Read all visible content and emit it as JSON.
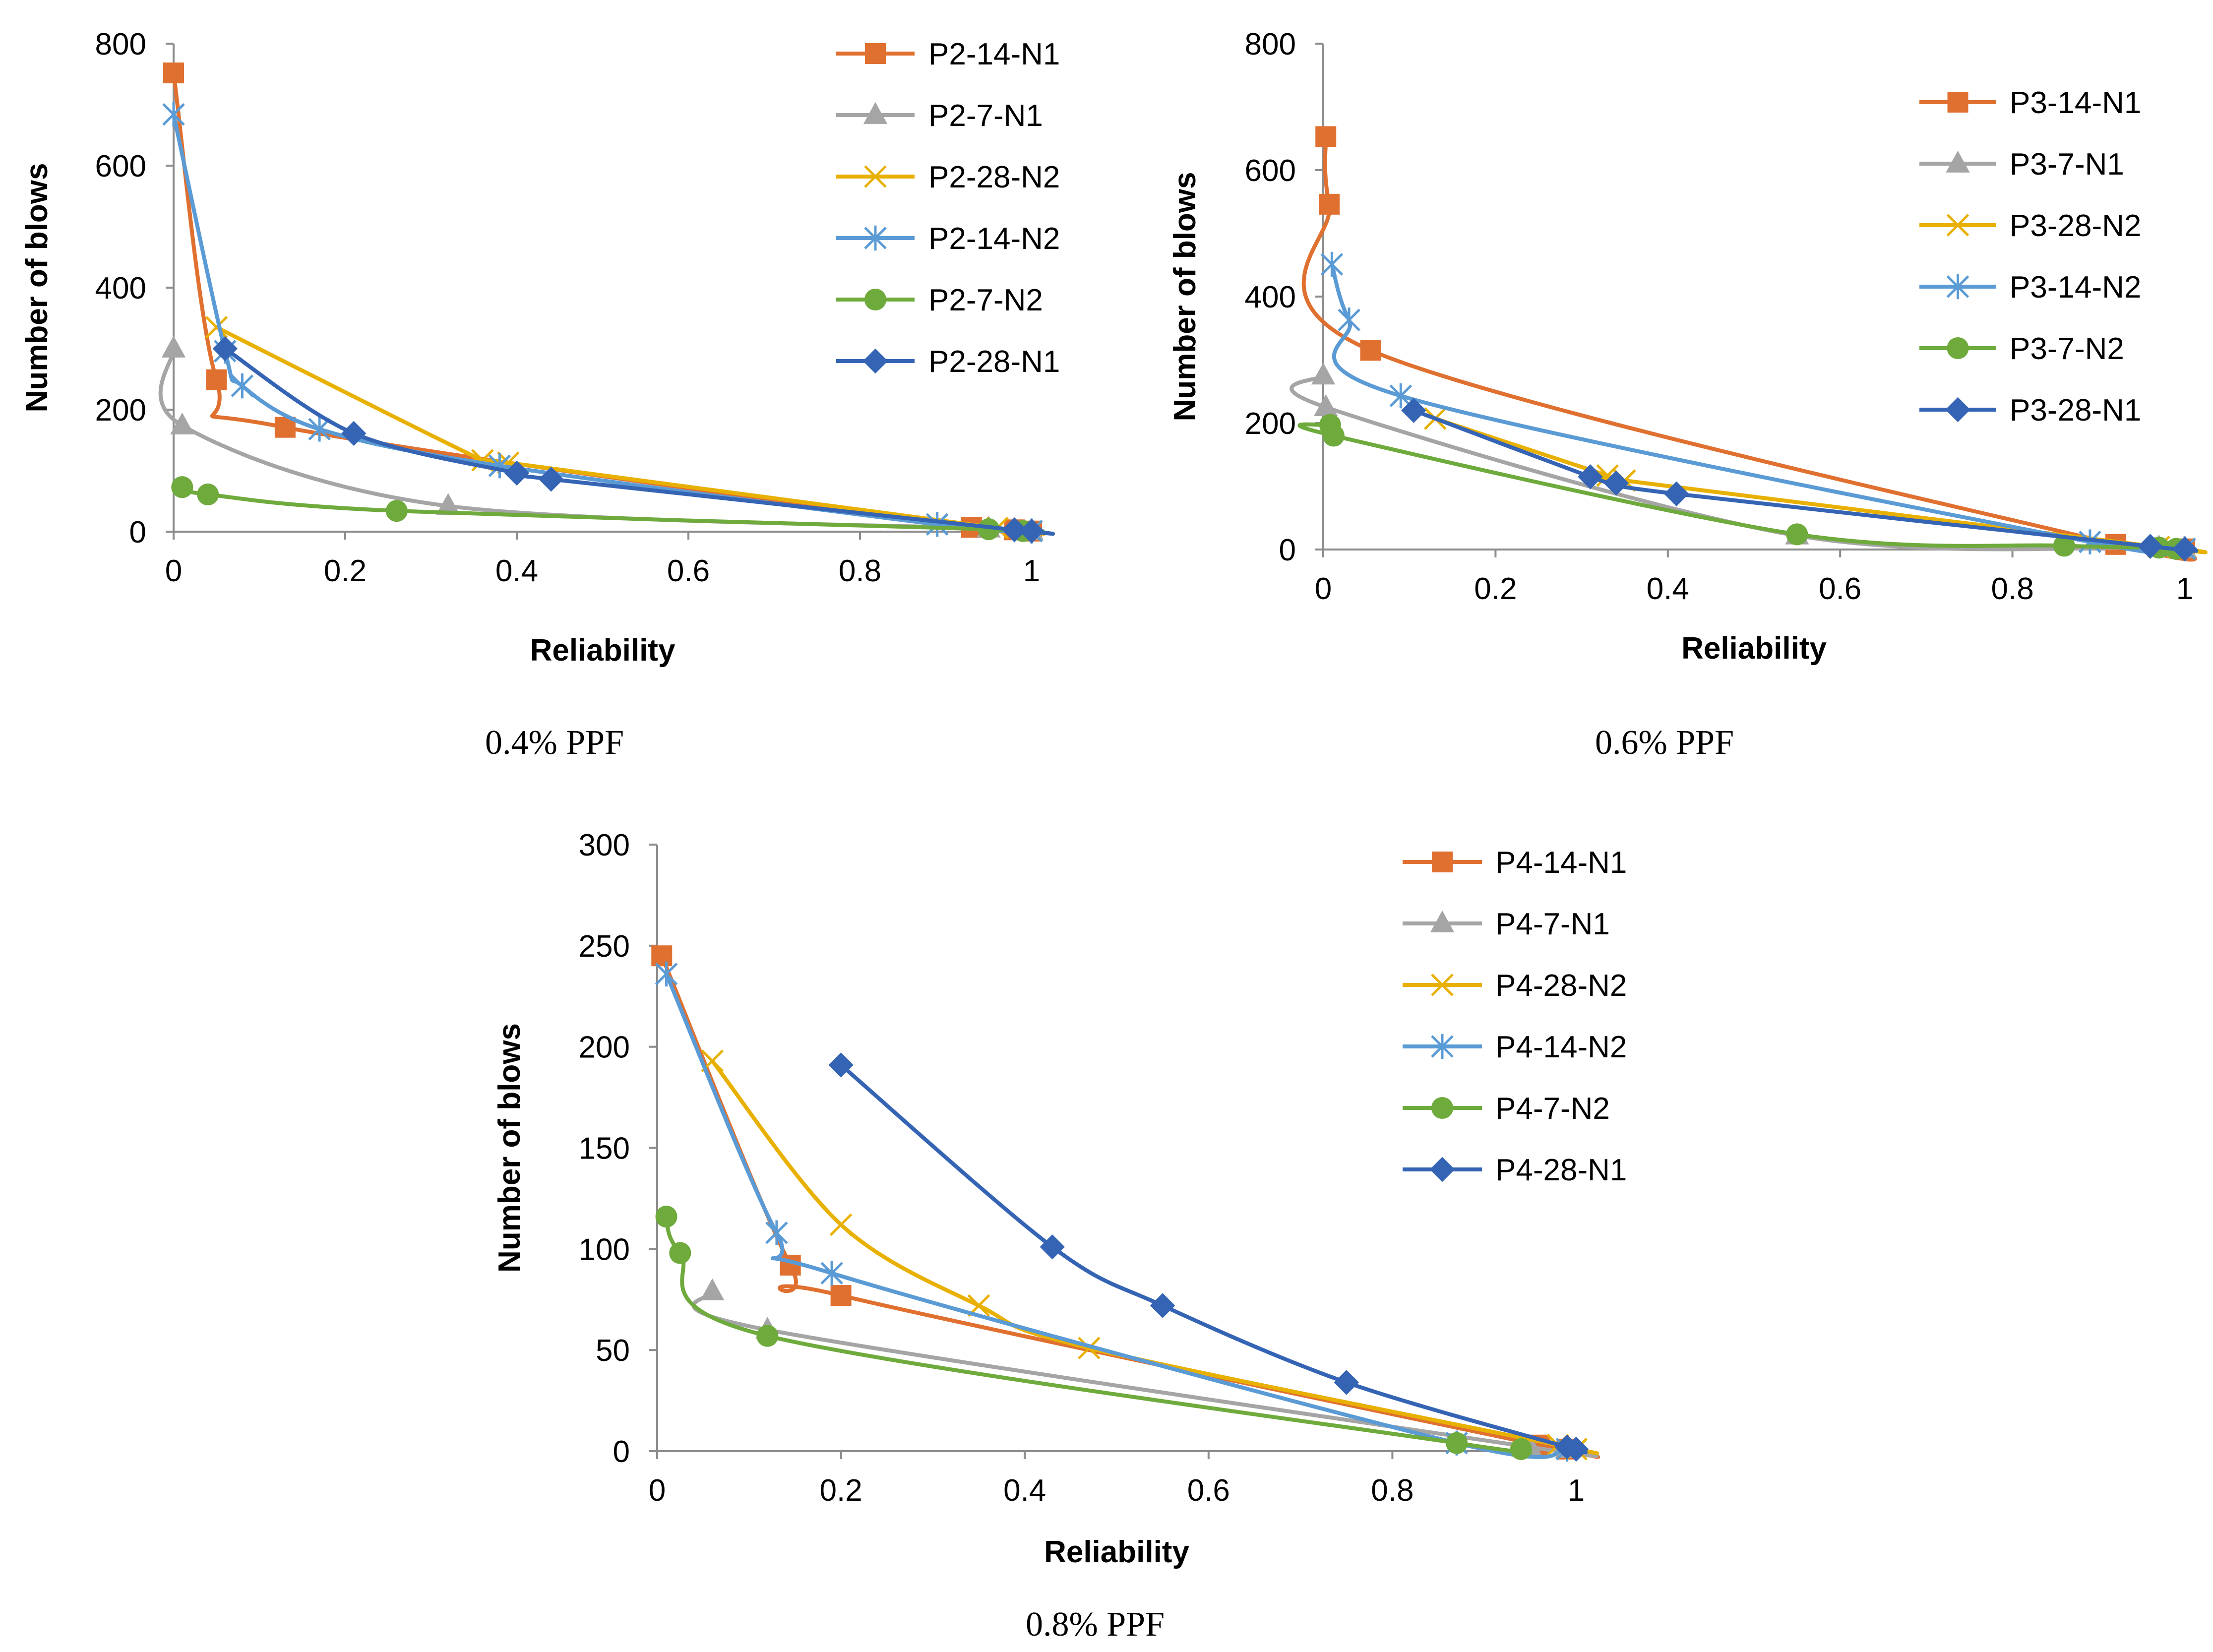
{
  "chart_data": [
    {
      "type": "line",
      "caption": "0.4% PPF",
      "xlabel": "Reliability",
      "ylabel": "Number of blows",
      "xlim": [
        0,
        1
      ],
      "ylim": [
        0,
        800
      ],
      "xticks": [
        0,
        0.2,
        0.4,
        0.6,
        0.8,
        1
      ],
      "xtick_labels": [
        "0",
        "0.2",
        "0.4",
        "0.6",
        "0.8",
        "1"
      ],
      "yticks": [
        0,
        200,
        400,
        600,
        800
      ],
      "ytick_labels": [
        "0",
        "200",
        "400",
        "600",
        "800"
      ],
      "legend_position": "right",
      "grid": false,
      "series": [
        {
          "name": "P2-14-N1",
          "color": "#E07030",
          "marker": "square",
          "x": [
            0.0,
            0.05,
            0.13,
            0.93,
            0.98,
            1.0
          ],
          "y": [
            752,
            249,
            171,
            7,
            3,
            1
          ]
        },
        {
          "name": "P2-7-N1",
          "color": "#A5A5A5",
          "marker": "triangle",
          "x": [
            0.0,
            0.01,
            0.32,
            0.95,
            1.0
          ],
          "y": [
            300,
            174,
            42,
            5,
            1
          ]
        },
        {
          "name": "P2-28-N2",
          "color": "#E8B000",
          "marker": "x",
          "x": [
            0.05,
            0.36,
            0.39,
            0.96,
            1.0
          ],
          "y": [
            335,
            117,
            113,
            6,
            1
          ]
        },
        {
          "name": "P2-14-N2",
          "color": "#5B9BD5",
          "marker": "star",
          "x": [
            0.0,
            0.06,
            0.08,
            0.17,
            0.38,
            0.89,
            1.0
          ],
          "y": [
            684,
            296,
            239,
            168,
            108,
            12,
            1
          ]
        },
        {
          "name": "P2-7-N2",
          "color": "#6EAA3C",
          "marker": "circle",
          "x": [
            0.01,
            0.04,
            0.26,
            0.95,
            0.99
          ],
          "y": [
            73,
            61,
            34,
            4,
            1
          ]
        },
        {
          "name": "P2-28-N1",
          "color": "#3564B4",
          "marker": "diamond",
          "x": [
            0.06,
            0.21,
            0.4,
            0.44,
            0.98,
            1.0
          ],
          "y": [
            300,
            161,
            96,
            86,
            3,
            1
          ]
        }
      ]
    },
    {
      "type": "line",
      "caption": "0.6% PPF",
      "xlabel": "Reliability",
      "ylabel": "Number of blows",
      "xlim": [
        0,
        1
      ],
      "ylim": [
        0,
        800
      ],
      "xticks": [
        0,
        0.2,
        0.4,
        0.6,
        0.8,
        1
      ],
      "xtick_labels": [
        "0",
        "0.2",
        "0.4",
        "0.6",
        "0.8",
        "1"
      ],
      "yticks": [
        0,
        200,
        400,
        600,
        800
      ],
      "ytick_labels": [
        "0",
        "200",
        "400",
        "600",
        "800"
      ],
      "legend_position": "right",
      "grid": false,
      "series": [
        {
          "name": "P3-14-N1",
          "color": "#E07030",
          "marker": "square",
          "x": [
            0.003,
            0.007,
            0.055,
            0.92,
            1.0
          ],
          "y": [
            653,
            546,
            315,
            8,
            1
          ]
        },
        {
          "name": "P3-7-N1",
          "color": "#A5A5A5",
          "marker": "triangle",
          "x": [
            0.0,
            0.003,
            0.55,
            0.97,
            1.0
          ],
          "y": [
            275,
            225,
            22,
            3,
            1
          ]
        },
        {
          "name": "P3-28-N2",
          "color": "#E8B000",
          "marker": "x",
          "x": [
            0.13,
            0.33,
            0.35,
            0.97,
            1.0
          ],
          "y": [
            207,
            117,
            109,
            4,
            1
          ]
        },
        {
          "name": "P3-14-N2",
          "color": "#5B9BD5",
          "marker": "star",
          "x": [
            0.01,
            0.03,
            0.09,
            0.89,
            1.0
          ],
          "y": [
            451,
            363,
            243,
            12,
            1
          ]
        },
        {
          "name": "P3-7-N2",
          "color": "#6EAA3C",
          "marker": "circle",
          "x": [
            0.008,
            0.012,
            0.55,
            0.86,
            0.97,
            0.99
          ],
          "y": [
            197,
            180,
            24,
            6,
            3,
            1
          ]
        },
        {
          "name": "P3-28-N1",
          "color": "#3564B4",
          "marker": "diamond",
          "x": [
            0.105,
            0.31,
            0.34,
            0.41,
            0.96,
            1.0
          ],
          "y": [
            220,
            115,
            105,
            88,
            5,
            1
          ]
        }
      ]
    },
    {
      "type": "line",
      "caption": "0.8% PPF",
      "xlabel": "Reliability",
      "ylabel": "Number of blows",
      "xlim": [
        0,
        1
      ],
      "ylim": [
        0,
        300
      ],
      "xticks": [
        0,
        0.2,
        0.4,
        0.6,
        0.8,
        1
      ],
      "xtick_labels": [
        "0",
        "0.2",
        "0.4",
        "0.6",
        "0.8",
        "1"
      ],
      "yticks": [
        0,
        50,
        100,
        150,
        200,
        250,
        300
      ],
      "ytick_labels": [
        "0",
        "50",
        "100",
        "150",
        "200",
        "250",
        "300"
      ],
      "legend_position": "right",
      "grid": false,
      "series": [
        {
          "name": "P4-14-N1",
          "color": "#E07030",
          "marker": "square",
          "x": [
            0.005,
            0.145,
            0.2,
            0.96,
            0.99
          ],
          "y": [
            245,
            92,
            77,
            3,
            1
          ]
        },
        {
          "name": "P4-7-N1",
          "color": "#A5A5A5",
          "marker": "triangle",
          "x": [
            0.06,
            0.12,
            0.95,
            0.99
          ],
          "y": [
            79,
            60,
            2,
            1
          ]
        },
        {
          "name": "P4-28-N2",
          "color": "#E8B000",
          "marker": "x",
          "x": [
            0.06,
            0.2,
            0.35,
            0.47,
            0.98,
            1.0
          ],
          "y": [
            193,
            112,
            72,
            51,
            3,
            1
          ]
        },
        {
          "name": "P4-14-N2",
          "color": "#5B9BD5",
          "marker": "star",
          "x": [
            0.01,
            0.13,
            0.19,
            0.87,
            0.99
          ],
          "y": [
            236,
            108,
            88,
            4,
            1
          ]
        },
        {
          "name": "P4-7-N2",
          "color": "#6EAA3C",
          "marker": "circle",
          "x": [
            0.01,
            0.025,
            0.12,
            0.87,
            0.94
          ],
          "y": [
            116,
            98,
            57,
            4,
            1
          ]
        },
        {
          "name": "P4-28-N1",
          "color": "#3564B4",
          "marker": "diamond",
          "x": [
            0.2,
            0.43,
            0.55,
            0.75,
            0.99,
            1.0
          ],
          "y": [
            191,
            101,
            72,
            34,
            2,
            1
          ]
        }
      ]
    }
  ]
}
